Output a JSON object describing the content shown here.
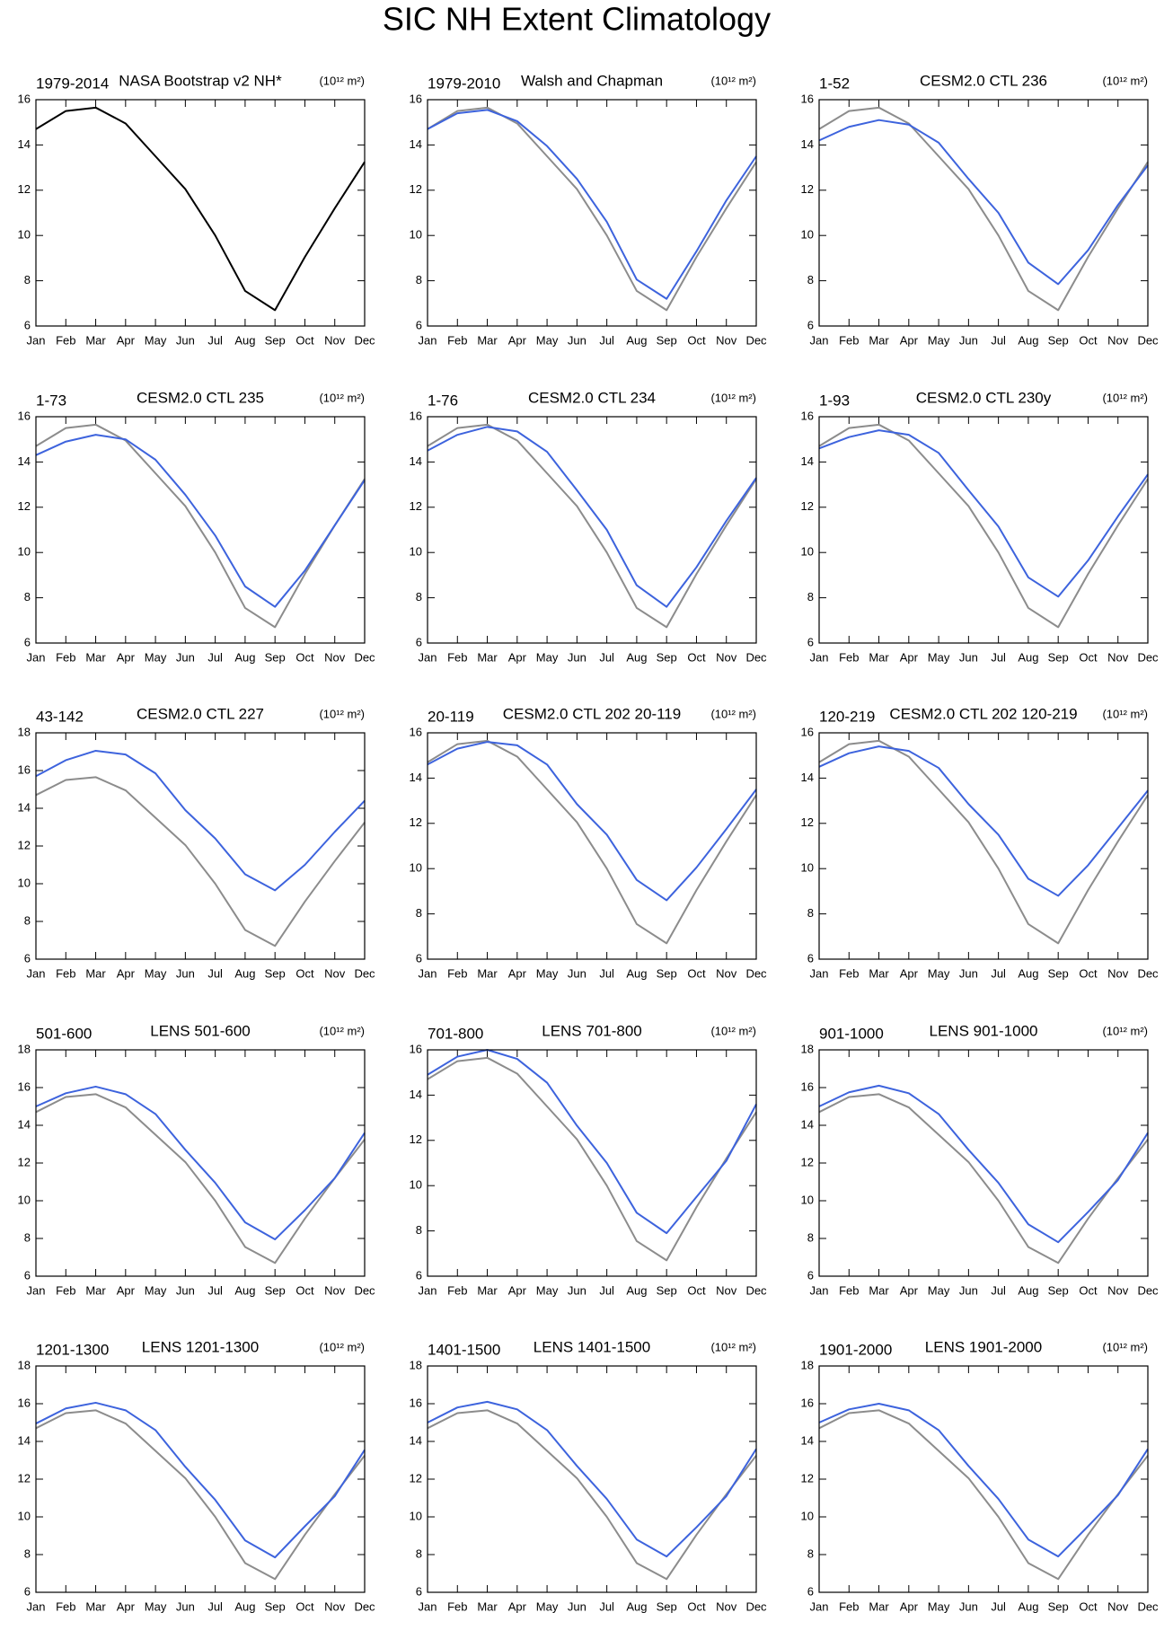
{
  "title": "SIC NH Extent Climatology",
  "chart_data": [
    {
      "type": "line",
      "label": "1979-2014",
      "title": "NASA Bootstrap v2 NH*",
      "units": "(10¹² m²)",
      "categories": [
        "Jan",
        "Feb",
        "Mar",
        "Apr",
        "May",
        "Jun",
        "Jul",
        "Aug",
        "Sep",
        "Oct",
        "Nov",
        "Dec"
      ],
      "ylim": [
        6,
        16
      ],
      "yticks": [
        6,
        8,
        10,
        12,
        14,
        16
      ],
      "series": [
        {
          "color": "#000000",
          "values": [
            14.7,
            15.5,
            15.65,
            14.95,
            13.5,
            12.05,
            10.0,
            7.55,
            6.7,
            9.05,
            11.2,
            13.25
          ]
        }
      ]
    },
    {
      "type": "line",
      "label": "1979-2010",
      "title": "Walsh and Chapman",
      "units": "(10¹² m²)",
      "categories": [
        "Jan",
        "Feb",
        "Mar",
        "Apr",
        "May",
        "Jun",
        "Jul",
        "Aug",
        "Sep",
        "Oct",
        "Nov",
        "Dec"
      ],
      "ylim": [
        6,
        16
      ],
      "yticks": [
        6,
        8,
        10,
        12,
        14,
        16
      ],
      "series": [
        {
          "color": "#8c8c8c",
          "values": [
            14.7,
            15.5,
            15.65,
            14.95,
            13.5,
            12.05,
            10.0,
            7.55,
            6.7,
            9.05,
            11.2,
            13.25
          ]
        },
        {
          "color": "#3d63dd",
          "values": [
            14.7,
            15.4,
            15.55,
            15.05,
            13.95,
            12.5,
            10.6,
            8.05,
            7.2,
            9.3,
            11.55,
            13.5
          ]
        }
      ]
    },
    {
      "type": "line",
      "label": "1-52",
      "title": "CESM2.0 CTL 236",
      "units": "(10¹² m²)",
      "categories": [
        "Jan",
        "Feb",
        "Mar",
        "Apr",
        "May",
        "Jun",
        "Jul",
        "Aug",
        "Sep",
        "Oct",
        "Nov",
        "Dec"
      ],
      "ylim": [
        6,
        16
      ],
      "yticks": [
        6,
        8,
        10,
        12,
        14,
        16
      ],
      "series": [
        {
          "color": "#8c8c8c",
          "values": [
            14.7,
            15.5,
            15.65,
            14.95,
            13.5,
            12.05,
            10.0,
            7.55,
            6.7,
            9.05,
            11.2,
            13.25
          ]
        },
        {
          "color": "#3d63dd",
          "values": [
            14.2,
            14.8,
            15.1,
            14.9,
            14.1,
            12.5,
            11.0,
            8.8,
            7.85,
            9.35,
            11.35,
            13.1
          ]
        }
      ]
    },
    {
      "type": "line",
      "label": "1-73",
      "title": "CESM2.0 CTL 235",
      "units": "(10¹² m²)",
      "categories": [
        "Jan",
        "Feb",
        "Mar",
        "Apr",
        "May",
        "Jun",
        "Jul",
        "Aug",
        "Sep",
        "Oct",
        "Nov",
        "Dec"
      ],
      "ylim": [
        6,
        16
      ],
      "yticks": [
        6,
        8,
        10,
        12,
        14,
        16
      ],
      "series": [
        {
          "color": "#8c8c8c",
          "values": [
            14.7,
            15.5,
            15.65,
            14.95,
            13.5,
            12.05,
            10.0,
            7.55,
            6.7,
            9.05,
            11.2,
            13.25
          ]
        },
        {
          "color": "#3d63dd",
          "values": [
            14.3,
            14.9,
            15.2,
            15.0,
            14.1,
            12.55,
            10.75,
            8.5,
            7.6,
            9.2,
            11.2,
            13.2
          ]
        }
      ]
    },
    {
      "type": "line",
      "label": "1-76",
      "title": "CESM2.0 CTL 234",
      "units": "(10¹² m²)",
      "categories": [
        "Jan",
        "Feb",
        "Mar",
        "Apr",
        "May",
        "Jun",
        "Jul",
        "Aug",
        "Sep",
        "Oct",
        "Nov",
        "Dec"
      ],
      "ylim": [
        6,
        16
      ],
      "yticks": [
        6,
        8,
        10,
        12,
        14,
        16
      ],
      "series": [
        {
          "color": "#8c8c8c",
          "values": [
            14.7,
            15.5,
            15.65,
            14.95,
            13.5,
            12.05,
            10.0,
            7.55,
            6.7,
            9.05,
            11.2,
            13.25
          ]
        },
        {
          "color": "#3d63dd",
          "values": [
            14.5,
            15.2,
            15.55,
            15.35,
            14.45,
            12.75,
            11.0,
            8.55,
            7.6,
            9.35,
            11.4,
            13.3
          ]
        }
      ]
    },
    {
      "type": "line",
      "label": "1-93",
      "title": "CESM2.0 CTL 230y",
      "units": "(10¹² m²)",
      "categories": [
        "Jan",
        "Feb",
        "Mar",
        "Apr",
        "May",
        "Jun",
        "Jul",
        "Aug",
        "Sep",
        "Oct",
        "Nov",
        "Dec"
      ],
      "ylim": [
        6,
        16
      ],
      "yticks": [
        6,
        8,
        10,
        12,
        14,
        16
      ],
      "series": [
        {
          "color": "#8c8c8c",
          "values": [
            14.7,
            15.5,
            15.65,
            14.95,
            13.5,
            12.05,
            10.0,
            7.55,
            6.7,
            9.05,
            11.2,
            13.25
          ]
        },
        {
          "color": "#3d63dd",
          "values": [
            14.6,
            15.1,
            15.4,
            15.2,
            14.4,
            12.75,
            11.15,
            8.9,
            8.05,
            9.65,
            11.6,
            13.45
          ]
        }
      ]
    },
    {
      "type": "line",
      "label": "43-142",
      "title": "CESM2.0 CTL 227",
      "units": "(10¹² m²)",
      "categories": [
        "Jan",
        "Feb",
        "Mar",
        "Apr",
        "May",
        "Jun",
        "Jul",
        "Aug",
        "Sep",
        "Oct",
        "Nov",
        "Dec"
      ],
      "ylim": [
        6,
        18
      ],
      "yticks": [
        6,
        8,
        10,
        12,
        14,
        16,
        18
      ],
      "series": [
        {
          "color": "#8c8c8c",
          "values": [
            14.7,
            15.5,
            15.65,
            14.95,
            13.5,
            12.05,
            10.0,
            7.55,
            6.7,
            9.05,
            11.2,
            13.25
          ]
        },
        {
          "color": "#3d63dd",
          "values": [
            15.7,
            16.55,
            17.05,
            16.85,
            15.85,
            13.9,
            12.4,
            10.5,
            9.65,
            11.0,
            12.75,
            14.4
          ]
        }
      ]
    },
    {
      "type": "line",
      "label": "20-119",
      "title": "CESM2.0 CTL 202 20-119",
      "units": "(10¹² m²)",
      "categories": [
        "Jan",
        "Feb",
        "Mar",
        "Apr",
        "May",
        "Jun",
        "Jul",
        "Aug",
        "Sep",
        "Oct",
        "Nov",
        "Dec"
      ],
      "ylim": [
        6,
        16
      ],
      "yticks": [
        6,
        8,
        10,
        12,
        14,
        16
      ],
      "series": [
        {
          "color": "#8c8c8c",
          "values": [
            14.7,
            15.5,
            15.65,
            14.95,
            13.5,
            12.05,
            10.0,
            7.55,
            6.7,
            9.05,
            11.2,
            13.25
          ]
        },
        {
          "color": "#3d63dd",
          "values": [
            14.6,
            15.3,
            15.6,
            15.45,
            14.6,
            12.85,
            11.5,
            9.5,
            8.6,
            10.05,
            11.75,
            13.5
          ]
        }
      ]
    },
    {
      "type": "line",
      "label": "120-219",
      "title": "CESM2.0 CTL 202 120-219",
      "units": "(10¹² m²)",
      "categories": [
        "Jan",
        "Feb",
        "Mar",
        "Apr",
        "May",
        "Jun",
        "Jul",
        "Aug",
        "Sep",
        "Oct",
        "Nov",
        "Dec"
      ],
      "ylim": [
        6,
        16
      ],
      "yticks": [
        6,
        8,
        10,
        12,
        14,
        16
      ],
      "series": [
        {
          "color": "#8c8c8c",
          "values": [
            14.7,
            15.5,
            15.65,
            14.95,
            13.5,
            12.05,
            10.0,
            7.55,
            6.7,
            9.05,
            11.2,
            13.25
          ]
        },
        {
          "color": "#3d63dd",
          "values": [
            14.5,
            15.1,
            15.4,
            15.2,
            14.45,
            12.85,
            11.5,
            9.55,
            8.8,
            10.15,
            11.8,
            13.45
          ]
        }
      ]
    },
    {
      "type": "line",
      "label": "501-600",
      "title": "LENS 501-600",
      "units": "(10¹² m²)",
      "categories": [
        "Jan",
        "Feb",
        "Mar",
        "Apr",
        "May",
        "Jun",
        "Jul",
        "Aug",
        "Sep",
        "Oct",
        "Nov",
        "Dec"
      ],
      "ylim": [
        6,
        18
      ],
      "yticks": [
        6,
        8,
        10,
        12,
        14,
        16,
        18
      ],
      "series": [
        {
          "color": "#8c8c8c",
          "values": [
            14.7,
            15.5,
            15.65,
            14.95,
            13.5,
            12.05,
            10.0,
            7.55,
            6.7,
            9.05,
            11.2,
            13.25
          ]
        },
        {
          "color": "#3d63dd",
          "values": [
            15.0,
            15.7,
            16.05,
            15.65,
            14.6,
            12.7,
            10.95,
            8.85,
            7.95,
            9.5,
            11.2,
            13.6
          ]
        }
      ]
    },
    {
      "type": "line",
      "label": "701-800",
      "title": "LENS 701-800",
      "units": "(10¹² m²)",
      "categories": [
        "Jan",
        "Feb",
        "Mar",
        "Apr",
        "May",
        "Jun",
        "Jul",
        "Aug",
        "Sep",
        "Oct",
        "Nov",
        "Dec"
      ],
      "ylim": [
        6,
        16
      ],
      "yticks": [
        6,
        8,
        10,
        12,
        14,
        16
      ],
      "series": [
        {
          "color": "#8c8c8c",
          "values": [
            14.7,
            15.5,
            15.65,
            14.95,
            13.5,
            12.05,
            10.0,
            7.55,
            6.7,
            9.05,
            11.2,
            13.25
          ]
        },
        {
          "color": "#3d63dd",
          "values": [
            14.9,
            15.7,
            16.0,
            15.6,
            14.55,
            12.65,
            11.0,
            8.8,
            7.9,
            9.5,
            11.1,
            13.6
          ]
        }
      ]
    },
    {
      "type": "line",
      "label": "901-1000",
      "title": "LENS 901-1000",
      "units": "(10¹² m²)",
      "categories": [
        "Jan",
        "Feb",
        "Mar",
        "Apr",
        "May",
        "Jun",
        "Jul",
        "Aug",
        "Sep",
        "Oct",
        "Nov",
        "Dec"
      ],
      "ylim": [
        6,
        18
      ],
      "yticks": [
        6,
        8,
        10,
        12,
        14,
        16,
        18
      ],
      "series": [
        {
          "color": "#8c8c8c",
          "values": [
            14.7,
            15.5,
            15.65,
            14.95,
            13.5,
            12.05,
            10.0,
            7.55,
            6.7,
            9.05,
            11.2,
            13.25
          ]
        },
        {
          "color": "#3d63dd",
          "values": [
            15.0,
            15.75,
            16.1,
            15.7,
            14.6,
            12.7,
            10.95,
            8.75,
            7.8,
            9.4,
            11.1,
            13.6
          ]
        }
      ]
    },
    {
      "type": "line",
      "label": "1201-1300",
      "title": "LENS 1201-1300",
      "units": "(10¹² m²)",
      "categories": [
        "Jan",
        "Feb",
        "Mar",
        "Apr",
        "May",
        "Jun",
        "Jul",
        "Aug",
        "Sep",
        "Oct",
        "Nov",
        "Dec"
      ],
      "ylim": [
        6,
        18
      ],
      "yticks": [
        6,
        8,
        10,
        12,
        14,
        16,
        18
      ],
      "series": [
        {
          "color": "#8c8c8c",
          "values": [
            14.7,
            15.5,
            15.65,
            14.95,
            13.5,
            12.05,
            10.0,
            7.55,
            6.7,
            9.05,
            11.2,
            13.25
          ]
        },
        {
          "color": "#3d63dd",
          "values": [
            14.95,
            15.75,
            16.05,
            15.65,
            14.6,
            12.65,
            10.9,
            8.75,
            7.85,
            9.5,
            11.1,
            13.55
          ]
        }
      ]
    },
    {
      "type": "line",
      "label": "1401-1500",
      "title": "LENS 1401-1500",
      "units": "(10¹² m²)",
      "categories": [
        "Jan",
        "Feb",
        "Mar",
        "Apr",
        "May",
        "Jun",
        "Jul",
        "Aug",
        "Sep",
        "Oct",
        "Nov",
        "Dec"
      ],
      "ylim": [
        6,
        18
      ],
      "yticks": [
        6,
        8,
        10,
        12,
        14,
        16,
        18
      ],
      "series": [
        {
          "color": "#8c8c8c",
          "values": [
            14.7,
            15.5,
            15.65,
            14.95,
            13.5,
            12.05,
            10.0,
            7.55,
            6.7,
            9.05,
            11.2,
            13.25
          ]
        },
        {
          "color": "#3d63dd",
          "values": [
            15.0,
            15.8,
            16.1,
            15.7,
            14.6,
            12.7,
            10.95,
            8.8,
            7.9,
            9.45,
            11.1,
            13.6
          ]
        }
      ]
    },
    {
      "type": "line",
      "label": "1901-2000",
      "title": "LENS 1901-2000",
      "units": "(10¹² m²)",
      "categories": [
        "Jan",
        "Feb",
        "Mar",
        "Apr",
        "May",
        "Jun",
        "Jul",
        "Aug",
        "Sep",
        "Oct",
        "Nov",
        "Dec"
      ],
      "ylim": [
        6,
        18
      ],
      "yticks": [
        6,
        8,
        10,
        12,
        14,
        16,
        18
      ],
      "series": [
        {
          "color": "#8c8c8c",
          "values": [
            14.7,
            15.5,
            15.65,
            14.95,
            13.5,
            12.05,
            10.0,
            7.55,
            6.7,
            9.05,
            11.2,
            13.25
          ]
        },
        {
          "color": "#3d63dd",
          "values": [
            15.0,
            15.7,
            16.0,
            15.65,
            14.6,
            12.7,
            10.95,
            8.8,
            7.9,
            9.5,
            11.15,
            13.6
          ]
        }
      ]
    }
  ]
}
